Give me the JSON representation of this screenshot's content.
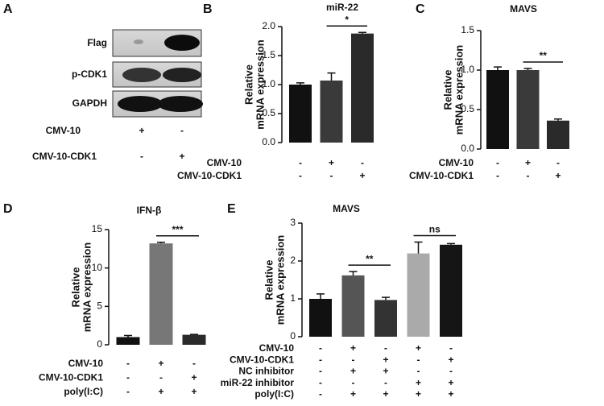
{
  "blot": {
    "panel": "A",
    "labels": [
      "Flag",
      "p-CDK1",
      "GAPDH"
    ],
    "conditions": [
      {
        "label": "CMV-10",
        "signs": [
          "+",
          "-"
        ]
      },
      {
        "label": "CMV-10-CDK1",
        "signs": [
          "-",
          "+"
        ]
      }
    ]
  },
  "chart_data": [
    {
      "type": "bar",
      "panel": "B",
      "title": "miR-22",
      "ylabel": [
        "Relative",
        "mRNA expression"
      ],
      "categories": [
        null,
        null,
        null
      ],
      "values": [
        1.0,
        1.07,
        1.88
      ],
      "errors": [
        0.03,
        0.13,
        0.02
      ],
      "colors": [
        "#111111",
        "#3a3a3a",
        "#2a2a2a"
      ],
      "ylim": [
        0,
        2
      ],
      "yticks": [
        {
          "value": 0,
          "label": "0.0"
        },
        0.5,
        {
          "value": 1,
          "label": "1.0"
        },
        1.5,
        {
          "value": 2,
          "label": "2.0"
        }
      ],
      "conditions": [
        {
          "label": "CMV-10",
          "signs": [
            "-",
            "+",
            "-"
          ]
        },
        {
          "label": "CMV-10-CDK1",
          "signs": [
            "-",
            "-",
            "+"
          ]
        }
      ],
      "significance": [
        {
          "bars": [
            1,
            2
          ],
          "label": "*"
        }
      ]
    },
    {
      "type": "bar",
      "panel": "C",
      "title": "MAVS",
      "ylabel": [
        "Relative",
        "mRNA expression"
      ],
      "categories": [
        null,
        null,
        null
      ],
      "values": [
        1.0,
        1.0,
        0.36
      ],
      "errors": [
        0.04,
        0.02,
        0.02
      ],
      "colors": [
        "#111111",
        "#3a3a3a",
        "#2a2a2a"
      ],
      "ylim": [
        0,
        1.5
      ],
      "yticks": [
        {
          "value": 0,
          "label": "0.0"
        },
        0.5,
        {
          "value": 1,
          "label": "1.0"
        },
        1.5
      ],
      "conditions": [
        {
          "label": "CMV-10",
          "signs": [
            "-",
            "+",
            "-"
          ]
        },
        {
          "label": "CMV-10-CDK1",
          "signs": [
            "-",
            "-",
            "+"
          ]
        }
      ],
      "significance": [
        {
          "bars": [
            1,
            2
          ],
          "label": "**"
        }
      ]
    },
    {
      "type": "bar",
      "panel": "D",
      "title": "IFN-β",
      "ylabel": [
        "Relative",
        "mRNA expression"
      ],
      "categories": [
        null,
        null,
        null
      ],
      "values": [
        1.0,
        13.2,
        1.3
      ],
      "errors": [
        0.2,
        0.15,
        0.05
      ],
      "colors": [
        "#111111",
        "#777777",
        "#2a2a2a"
      ],
      "ylim": [
        0,
        15
      ],
      "yticks": [
        0,
        5,
        10,
        15
      ],
      "conditions": [
        {
          "label": "CMV-10",
          "signs": [
            "-",
            "+",
            "-"
          ]
        },
        {
          "label": "CMV-10-CDK1",
          "signs": [
            "-",
            "-",
            "+"
          ]
        },
        {
          "label": "poly(I:C)",
          "signs": [
            "-",
            "+",
            "+"
          ]
        }
      ],
      "significance": [
        {
          "bars": [
            1,
            2
          ],
          "label": "***"
        }
      ]
    },
    {
      "type": "bar",
      "panel": "E",
      "title": "MAVS",
      "ylabel": [
        "Relative",
        "mRNA expression"
      ],
      "categories": [
        null,
        null,
        null,
        null,
        null
      ],
      "values": [
        1.0,
        1.62,
        0.97,
        2.2,
        2.43
      ],
      "errors": [
        0.13,
        0.1,
        0.07,
        0.3,
        0.03
      ],
      "colors": [
        "#111111",
        "#555555",
        "#333333",
        "#aaaaaa",
        "#151515"
      ],
      "ylim": [
        0,
        3
      ],
      "yticks": [
        0,
        1,
        2,
        3
      ],
      "conditions": [
        {
          "label": "CMV-10",
          "signs": [
            "-",
            "+",
            "-",
            "+",
            "-"
          ]
        },
        {
          "label": "CMV-10-CDK1",
          "signs": [
            "-",
            "-",
            "+",
            "-",
            "+"
          ]
        },
        {
          "label": "NC inhibitor",
          "signs": [
            "-",
            "+",
            "+",
            "-",
            "-"
          ]
        },
        {
          "label": "miR-22 inhibitor",
          "signs": [
            "-",
            "-",
            "-",
            "+",
            "+"
          ]
        },
        {
          "label": "poly(I:C)",
          "signs": [
            "-",
            "+",
            "+",
            "+",
            "+"
          ]
        }
      ],
      "significance": [
        {
          "bars": [
            1,
            2
          ],
          "label": "**"
        },
        {
          "bars": [
            3,
            4
          ],
          "label": "ns"
        }
      ]
    }
  ]
}
